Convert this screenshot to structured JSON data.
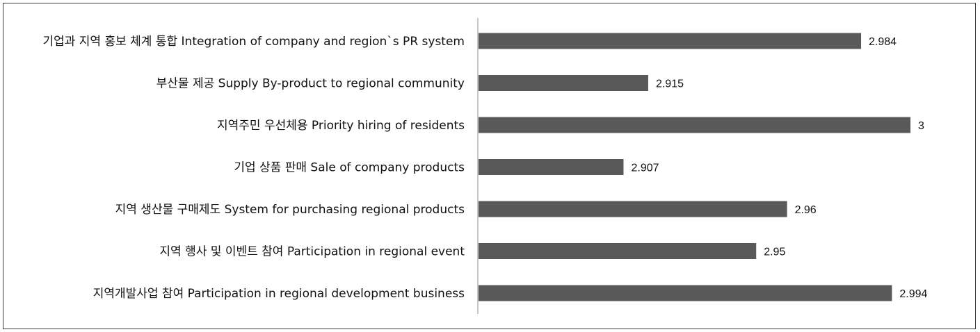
{
  "chart_data": {
    "type": "bar",
    "orientation": "horizontal",
    "categories": [
      "기업과 지역 홍보 체계 통합 Integration of company and region`s PR system",
      "부산물 제공 Supply By-product to  regional community",
      "지역주민 우선체용 Priority hiring of residents",
      "기업 상품 판매 Sale of company products",
      "지역 생산물 구매제도 System for purchasing regional products",
      "지역 행사 및 이벤트 참여 Participation in regional event",
      "지역개발사업 참여 Participation in regional development business"
    ],
    "values": [
      2.984,
      2.915,
      3,
      2.907,
      2.96,
      2.95,
      2.994
    ],
    "value_labels": [
      "2.984",
      "2.915",
      "3",
      "2.907",
      "2.96",
      "2.95",
      "2.994"
    ],
    "xlim": [
      2.86,
      3.0
    ],
    "bar_color": "#595959",
    "grid": false,
    "legend": "none",
    "title": "",
    "xlabel": "",
    "ylabel": ""
  }
}
